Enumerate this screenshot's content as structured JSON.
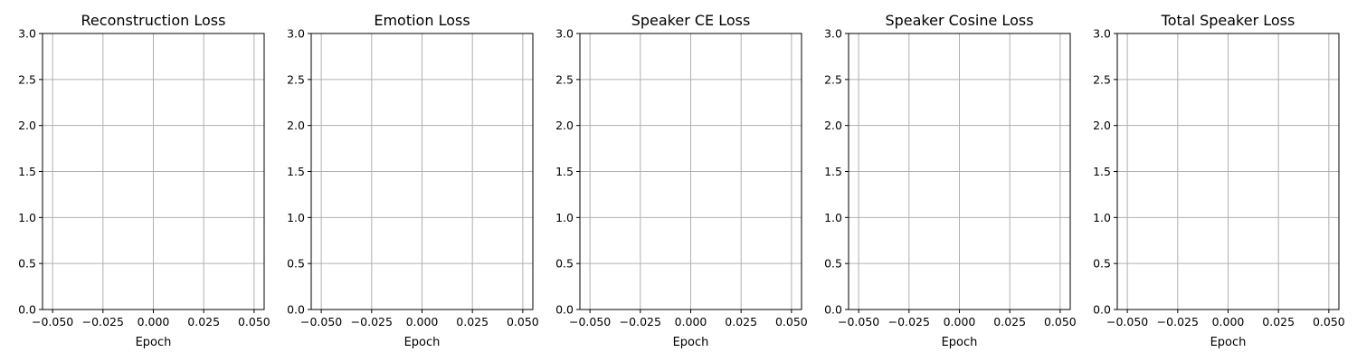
{
  "chart_data": [
    {
      "type": "line",
      "title": "Reconstruction Loss",
      "xlabel": "Epoch",
      "ylabel": "",
      "xlim": [
        -0.055,
        0.055
      ],
      "ylim": [
        0,
        3
      ],
      "xticks": [
        -0.05,
        -0.025,
        0,
        0.025,
        0.05
      ],
      "xtick_labels": [
        "−0.050",
        "−0.025",
        "0.000",
        "0.025",
        "0.050"
      ],
      "yticks": [
        0,
        0.5,
        1,
        1.5,
        2,
        2.5,
        3
      ],
      "ytick_labels": [
        "0.0",
        "0.5",
        "1.0",
        "1.5",
        "2.0",
        "2.5",
        "3.0"
      ],
      "grid": true,
      "series": []
    },
    {
      "type": "line",
      "title": "Emotion Loss",
      "xlabel": "Epoch",
      "ylabel": "",
      "xlim": [
        -0.055,
        0.055
      ],
      "ylim": [
        0,
        3
      ],
      "xticks": [
        -0.05,
        -0.025,
        0,
        0.025,
        0.05
      ],
      "xtick_labels": [
        "−0.050",
        "−0.025",
        "0.000",
        "0.025",
        "0.050"
      ],
      "yticks": [
        0,
        0.5,
        1,
        1.5,
        2,
        2.5,
        3
      ],
      "ytick_labels": [
        "0.0",
        "0.5",
        "1.0",
        "1.5",
        "2.0",
        "2.5",
        "3.0"
      ],
      "grid": true,
      "series": []
    },
    {
      "type": "line",
      "title": "Speaker CE Loss",
      "xlabel": "Epoch",
      "ylabel": "",
      "xlim": [
        -0.055,
        0.055
      ],
      "ylim": [
        0,
        3
      ],
      "xticks": [
        -0.05,
        -0.025,
        0,
        0.025,
        0.05
      ],
      "xtick_labels": [
        "−0.050",
        "−0.025",
        "0.000",
        "0.025",
        "0.050"
      ],
      "yticks": [
        0,
        0.5,
        1,
        1.5,
        2,
        2.5,
        3
      ],
      "ytick_labels": [
        "0.0",
        "0.5",
        "1.0",
        "1.5",
        "2.0",
        "2.5",
        "3.0"
      ],
      "grid": true,
      "series": []
    },
    {
      "type": "line",
      "title": "Speaker Cosine Loss",
      "xlabel": "Epoch",
      "ylabel": "",
      "xlim": [
        -0.055,
        0.055
      ],
      "ylim": [
        0,
        3
      ],
      "xticks": [
        -0.05,
        -0.025,
        0,
        0.025,
        0.05
      ],
      "xtick_labels": [
        "−0.050",
        "−0.025",
        "0.000",
        "0.025",
        "0.050"
      ],
      "yticks": [
        0,
        0.5,
        1,
        1.5,
        2,
        2.5,
        3
      ],
      "ytick_labels": [
        "0.0",
        "0.5",
        "1.0",
        "1.5",
        "2.0",
        "2.5",
        "3.0"
      ],
      "grid": true,
      "series": []
    },
    {
      "type": "line",
      "title": "Total Speaker Loss",
      "xlabel": "Epoch",
      "ylabel": "",
      "xlim": [
        -0.055,
        0.055
      ],
      "ylim": [
        0,
        3
      ],
      "xticks": [
        -0.05,
        -0.025,
        0,
        0.025,
        0.05
      ],
      "xtick_labels": [
        "−0.050",
        "−0.025",
        "0.000",
        "0.025",
        "0.050"
      ],
      "yticks": [
        0,
        0.5,
        1,
        1.5,
        2,
        2.5,
        3
      ],
      "ytick_labels": [
        "0.0",
        "0.5",
        "1.0",
        "1.5",
        "2.0",
        "2.5",
        "3.0"
      ],
      "grid": true,
      "series": []
    }
  ]
}
